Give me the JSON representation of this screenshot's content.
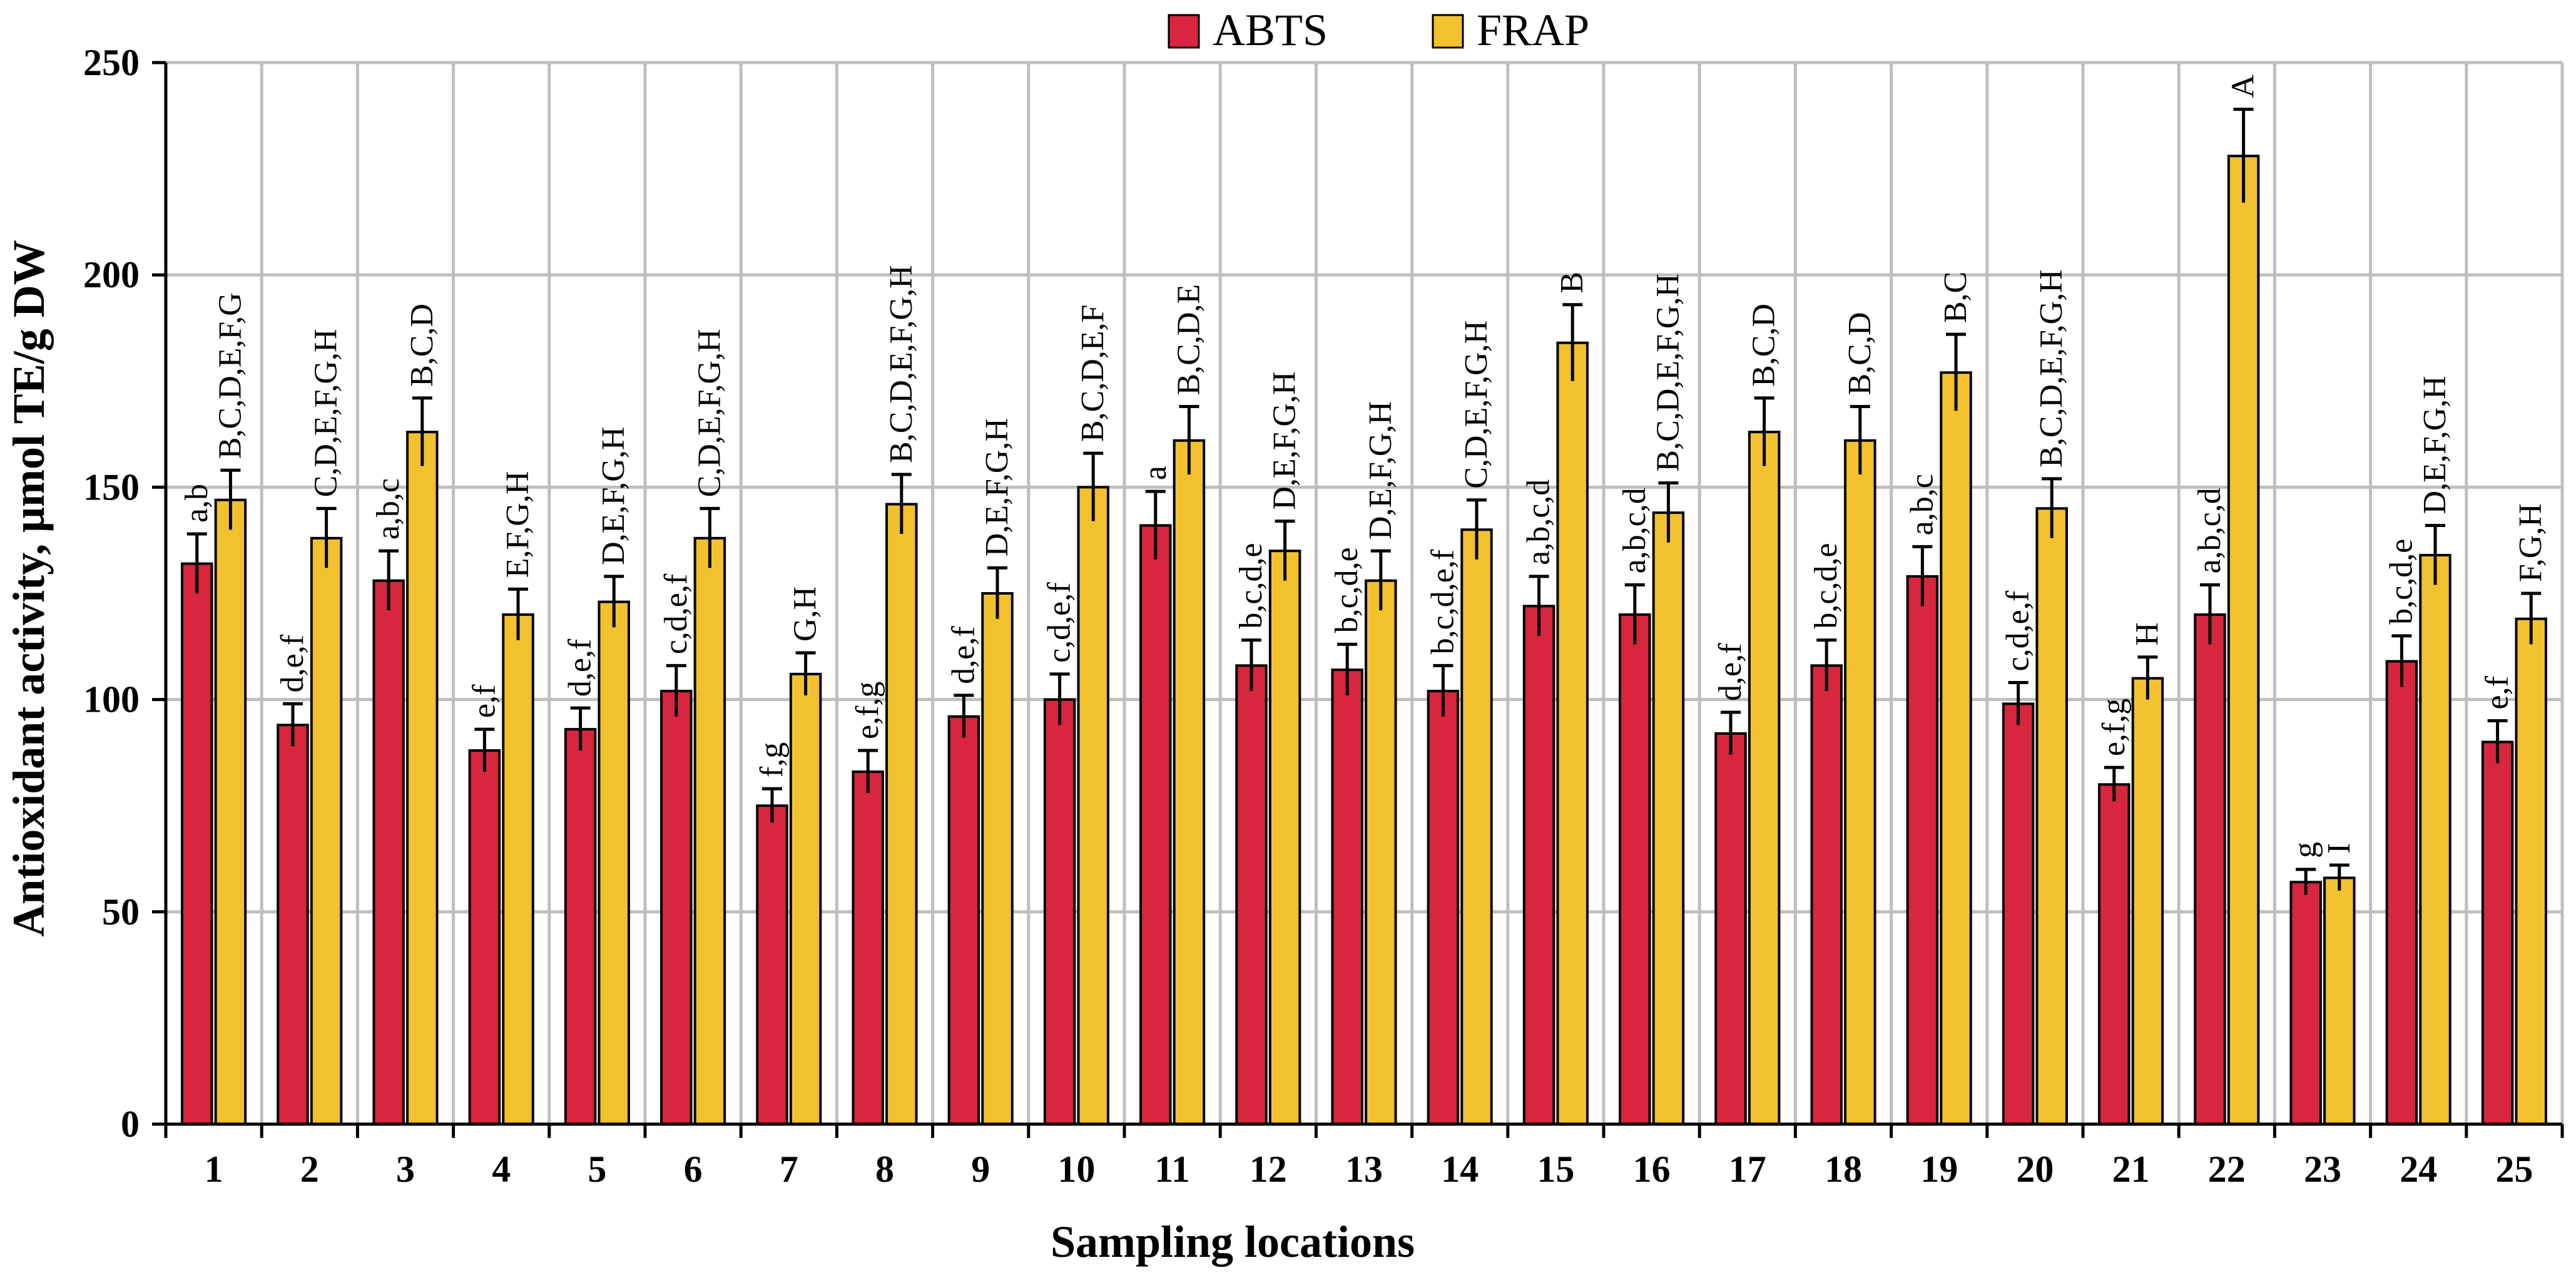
{
  "colors": {
    "abts": "#d7263d",
    "frap": "#f2c12e",
    "grid": "#bfbfbf",
    "axis": "#000000"
  },
  "chart_data": {
    "type": "bar",
    "xlabel": "Sampling locations",
    "ylabel": "Antioxidant activity, μmol TE/g DW",
    "ylim": [
      0,
      250
    ],
    "yticks": [
      0,
      50,
      100,
      150,
      200,
      250
    ],
    "grid": true,
    "legend": "top-center",
    "categories": [
      "1",
      "2",
      "3",
      "4",
      "5",
      "6",
      "7",
      "8",
      "9",
      "10",
      "11",
      "12",
      "13",
      "14",
      "15",
      "16",
      "17",
      "18",
      "19",
      "20",
      "21",
      "22",
      "23",
      "24",
      "25"
    ],
    "series": [
      {
        "name": "ABTS",
        "values": [
          132,
          94,
          128,
          88,
          93,
          102,
          75,
          83,
          96,
          100,
          141,
          108,
          107,
          102,
          122,
          120,
          92,
          108,
          129,
          99,
          80,
          120,
          57,
          109,
          90
        ],
        "errors": [
          7,
          5,
          7,
          5,
          5,
          6,
          4,
          5,
          5,
          6,
          8,
          6,
          6,
          6,
          7,
          7,
          5,
          6,
          7,
          5,
          4,
          7,
          3,
          6,
          5
        ],
        "labels": [
          "a,b",
          "d,e,f",
          "a,b,c",
          "e,f",
          "d,e,f",
          "c,d,e,f",
          "f,g",
          "e,f,g",
          "d,e,f",
          "c,d,e,f",
          "a",
          "b,c,d,e",
          "b,c,d,e",
          "b,c,d,e,f",
          "a,b,c,d",
          "a,b,c,d",
          "d,e,f",
          "b,c,d,e",
          "a,b,c",
          "c,d,e,f",
          "e,f,g",
          "a,b,c,d",
          "g",
          "b,c,d,e",
          "e,f"
        ]
      },
      {
        "name": "FRAP",
        "values": [
          147,
          138,
          163,
          120,
          123,
          138,
          106,
          146,
          125,
          150,
          161,
          135,
          128,
          140,
          184,
          144,
          163,
          161,
          177,
          145,
          105,
          228,
          58,
          134,
          119
        ],
        "errors": [
          7,
          7,
          8,
          6,
          6,
          7,
          5,
          7,
          6,
          8,
          8,
          7,
          7,
          7,
          9,
          7,
          8,
          8,
          9,
          7,
          5,
          11,
          3,
          7,
          6
        ],
        "labels": [
          "B,C,D,E,F,G",
          "C,D,E,F,G,H",
          "B,C,D",
          "E,F,G,H",
          "D,E,F,G,H",
          "C,D,E,F,G,H",
          "G,H",
          "B,C,D,E,F,G,H",
          "D,E,F,G,H",
          "B,C,D,E,F",
          "B,C,D,E",
          "D,E,F,G,H",
          "D,E,F,G,H",
          "C,D,E,F,G,H",
          "B",
          "B,C,D,E,F,G,H",
          "B,C,D",
          "B,C,D",
          "B,C",
          "B,C,D,E,F,G,H",
          "H",
          "A",
          "I",
          "D,E,F,G,H",
          "F,G,H"
        ]
      }
    ]
  }
}
